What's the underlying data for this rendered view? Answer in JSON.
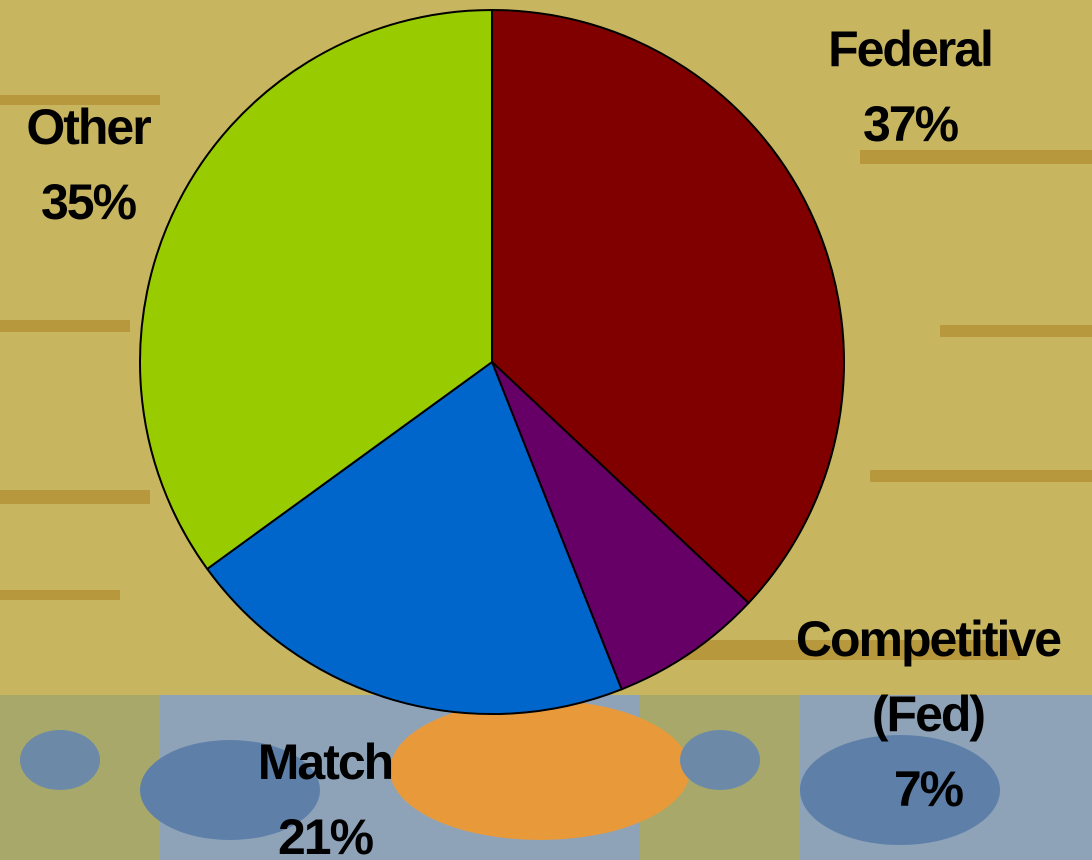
{
  "chart_data": {
    "type": "pie",
    "categories": [
      "Federal",
      "Competitive (Fed)",
      "Match",
      "Other"
    ],
    "values": [
      37,
      7,
      21,
      35
    ],
    "value_labels": [
      "37%",
      "7%",
      "21%",
      "35%"
    ],
    "colors": [
      "#800000",
      "#660066",
      "#0066cc",
      "#99cc00"
    ]
  }
}
